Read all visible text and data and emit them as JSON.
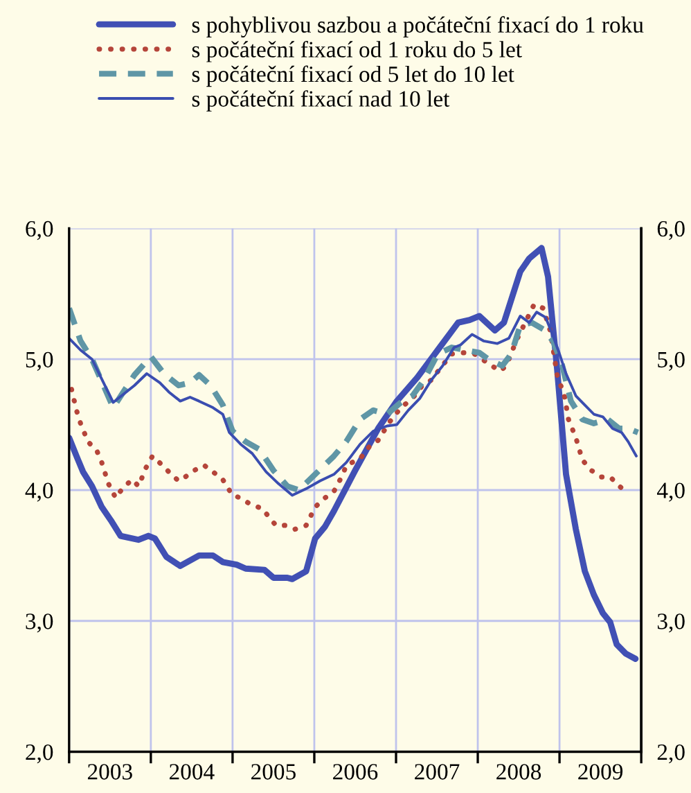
{
  "chart_data": {
    "type": "line",
    "xlim": [
      2003,
      2010
    ],
    "xticks": [
      {
        "value": 2003,
        "label": null
      },
      {
        "value": 2003.5,
        "label": "2003"
      },
      {
        "value": 2004,
        "label": null
      },
      {
        "value": 2004.5,
        "label": "2004"
      },
      {
        "value": 2005,
        "label": null
      },
      {
        "value": 2005.5,
        "label": "2005"
      },
      {
        "value": 2006,
        "label": null
      },
      {
        "value": 2006.5,
        "label": "2006"
      },
      {
        "value": 2007,
        "label": null
      },
      {
        "value": 2007.5,
        "label": "2007"
      },
      {
        "value": 2008,
        "label": null
      },
      {
        "value": 2008.5,
        "label": "2008"
      },
      {
        "value": 2009,
        "label": null
      },
      {
        "value": 2009.5,
        "label": "2009"
      },
      {
        "value": 2010,
        "label": null
      }
    ],
    "ylim": [
      2,
      6
    ],
    "yticks": [
      {
        "value": 2,
        "label": "2,0"
      },
      {
        "value": 3,
        "label": "3,0"
      },
      {
        "value": 4,
        "label": "4,0"
      },
      {
        "value": 5,
        "label": "5,0"
      },
      {
        "value": 6,
        "label": "6,0"
      }
    ],
    "y2lim": [
      2,
      6
    ],
    "y2ticks": [
      {
        "value": 2,
        "label": "2,0"
      },
      {
        "value": 3,
        "label": "3,0"
      },
      {
        "value": 4,
        "label": "4,0"
      },
      {
        "value": 5,
        "label": "5,0"
      },
      {
        "value": 6,
        "label": "6,0"
      }
    ],
    "grid": true,
    "legend": "top",
    "marker": "none",
    "series": [
      {
        "name": "s pohyblivou sazbou a počáteční fixací do 1 roku",
        "color": "#4150b4",
        "line_style": "solid",
        "x": [
          2003.0,
          2003.09,
          2003.17,
          2003.28,
          2003.4,
          2003.51,
          2003.63,
          2003.85,
          2003.97,
          2004.05,
          2004.19,
          2004.36,
          2004.59,
          2004.76,
          2004.88,
          2005.05,
          2005.16,
          2005.39,
          2005.5,
          2005.67,
          2005.73,
          2005.9,
          2006.01,
          2006.13,
          2006.24,
          2006.5,
          2006.78,
          2007.01,
          2007.26,
          2007.51,
          2007.76,
          2007.9,
          2008.02,
          2008.21,
          2008.32,
          2008.52,
          2008.63,
          2008.78,
          2008.86,
          2008.97,
          2009.08,
          2009.2,
          2009.31,
          2009.42,
          2009.53,
          2009.62,
          2009.7,
          2009.81,
          2009.93
        ],
        "values": [
          4.4,
          4.26,
          4.14,
          4.03,
          3.87,
          3.77,
          3.65,
          3.62,
          3.65,
          3.63,
          3.49,
          3.42,
          3.5,
          3.5,
          3.45,
          3.43,
          3.4,
          3.39,
          3.33,
          3.33,
          3.32,
          3.38,
          3.63,
          3.72,
          3.84,
          4.15,
          4.47,
          4.68,
          4.86,
          5.07,
          5.28,
          5.3,
          5.33,
          5.22,
          5.28,
          5.67,
          5.77,
          5.85,
          5.63,
          4.93,
          4.12,
          3.7,
          3.38,
          3.2,
          3.06,
          2.99,
          2.82,
          2.75,
          2.71
        ]
      },
      {
        "name": "s počáteční fixací od 1 roku do 5 let",
        "color": "#b5453a",
        "line_style": "dotted",
        "x": [
          2003.03,
          2003.09,
          2003.14,
          2003.23,
          2003.34,
          2003.4,
          2003.48,
          2003.57,
          2003.65,
          2003.77,
          2003.85,
          2003.94,
          2004.02,
          2004.14,
          2004.25,
          2004.34,
          2004.42,
          2004.53,
          2004.65,
          2004.76,
          2004.88,
          2005.0,
          2005.1,
          2005.22,
          2005.36,
          2005.53,
          2005.64,
          2005.76,
          2005.9,
          2006.01,
          2006.13,
          2006.24,
          2006.35,
          2006.39,
          2006.56,
          2006.67,
          2006.78,
          2006.92,
          2007.06,
          2007.2,
          2007.31,
          2007.43,
          2007.54,
          2007.68,
          2007.82,
          2007.96,
          2008.1,
          2008.27,
          2008.35,
          2008.47,
          2008.58,
          2008.69,
          2008.8,
          2008.89,
          2008.97,
          2009.06,
          2009.11,
          2009.2,
          2009.28,
          2009.39,
          2009.51,
          2009.62,
          2009.73,
          2009.84
        ],
        "values": [
          4.77,
          4.61,
          4.51,
          4.37,
          4.3,
          4.21,
          4.05,
          3.94,
          4.01,
          4.08,
          4.03,
          4.17,
          4.26,
          4.19,
          4.12,
          4.07,
          4.1,
          4.15,
          4.19,
          4.14,
          4.08,
          3.96,
          3.94,
          3.89,
          3.86,
          3.73,
          3.73,
          3.7,
          3.73,
          3.87,
          3.94,
          3.99,
          4.12,
          4.19,
          4.24,
          4.33,
          4.38,
          4.52,
          4.63,
          4.7,
          4.79,
          4.84,
          4.93,
          5.04,
          5.05,
          5.04,
          4.98,
          4.91,
          4.95,
          5.14,
          5.28,
          5.42,
          5.39,
          5.21,
          4.88,
          4.72,
          4.54,
          4.4,
          4.23,
          4.15,
          4.1,
          4.1,
          4.03,
          3.98
        ]
      },
      {
        "name": "s počáteční fixací od 5 let do 10 let",
        "color": "#5f96a6",
        "line_style": "dashed",
        "x": [
          2003.0,
          2003.14,
          2003.28,
          2003.54,
          2003.8,
          2004.0,
          2004.16,
          2004.34,
          2004.48,
          2004.59,
          2004.73,
          2004.88,
          2005.0,
          2005.16,
          2005.33,
          2005.5,
          2005.67,
          2005.81,
          2006.01,
          2006.24,
          2006.39,
          2006.56,
          2006.72,
          2006.89,
          2007.06,
          2007.2,
          2007.34,
          2007.51,
          2007.68,
          2007.85,
          2008.02,
          2008.13,
          2008.3,
          2008.41,
          2008.52,
          2008.66,
          2008.8,
          2008.92,
          2009.03,
          2009.14,
          2009.28,
          2009.42,
          2009.59,
          2009.73,
          2009.84,
          2009.96
        ],
        "values": [
          5.39,
          5.14,
          5.0,
          4.63,
          4.88,
          5.02,
          4.89,
          4.8,
          4.82,
          4.88,
          4.8,
          4.65,
          4.45,
          4.37,
          4.31,
          4.15,
          4.03,
          4.0,
          4.12,
          4.26,
          4.37,
          4.54,
          4.61,
          4.58,
          4.67,
          4.72,
          4.84,
          5.04,
          5.09,
          5.07,
          5.05,
          5.0,
          4.95,
          5.04,
          5.26,
          5.28,
          5.23,
          5.14,
          4.96,
          4.68,
          4.54,
          4.51,
          4.54,
          4.47,
          4.47,
          4.44
        ]
      },
      {
        "name": "s počáteční fixací nad 10 let",
        "color": "#3a4db0",
        "line_style": "solid",
        "x": [
          2003.0,
          2003.14,
          2003.28,
          2003.54,
          2003.8,
          2003.95,
          2004.11,
          2004.22,
          2004.36,
          2004.48,
          2004.59,
          2004.76,
          2004.88,
          2004.96,
          2005.1,
          2005.24,
          2005.41,
          2005.56,
          2005.73,
          2005.9,
          2006.07,
          2006.24,
          2006.39,
          2006.56,
          2006.72,
          2006.89,
          2007.01,
          2007.15,
          2007.29,
          2007.43,
          2007.57,
          2007.71,
          2007.79,
          2007.93,
          2008.07,
          2008.24,
          2008.38,
          2008.52,
          2008.63,
          2008.72,
          2008.83,
          2008.92,
          2009.0,
          2009.08,
          2009.2,
          2009.31,
          2009.42,
          2009.53,
          2009.65,
          2009.76,
          2009.84,
          2009.94
        ],
        "values": [
          5.16,
          5.07,
          5.0,
          4.67,
          4.8,
          4.89,
          4.82,
          4.75,
          4.68,
          4.71,
          4.68,
          4.63,
          4.58,
          4.44,
          4.35,
          4.28,
          4.14,
          4.05,
          3.96,
          4.01,
          4.07,
          4.12,
          4.21,
          4.35,
          4.45,
          4.49,
          4.5,
          4.61,
          4.7,
          4.84,
          4.95,
          5.09,
          5.11,
          5.19,
          5.14,
          5.12,
          5.16,
          5.33,
          5.28,
          5.36,
          5.32,
          5.18,
          5.04,
          4.89,
          4.72,
          4.65,
          4.58,
          4.56,
          4.47,
          4.44,
          4.37,
          4.26
        ]
      }
    ]
  }
}
